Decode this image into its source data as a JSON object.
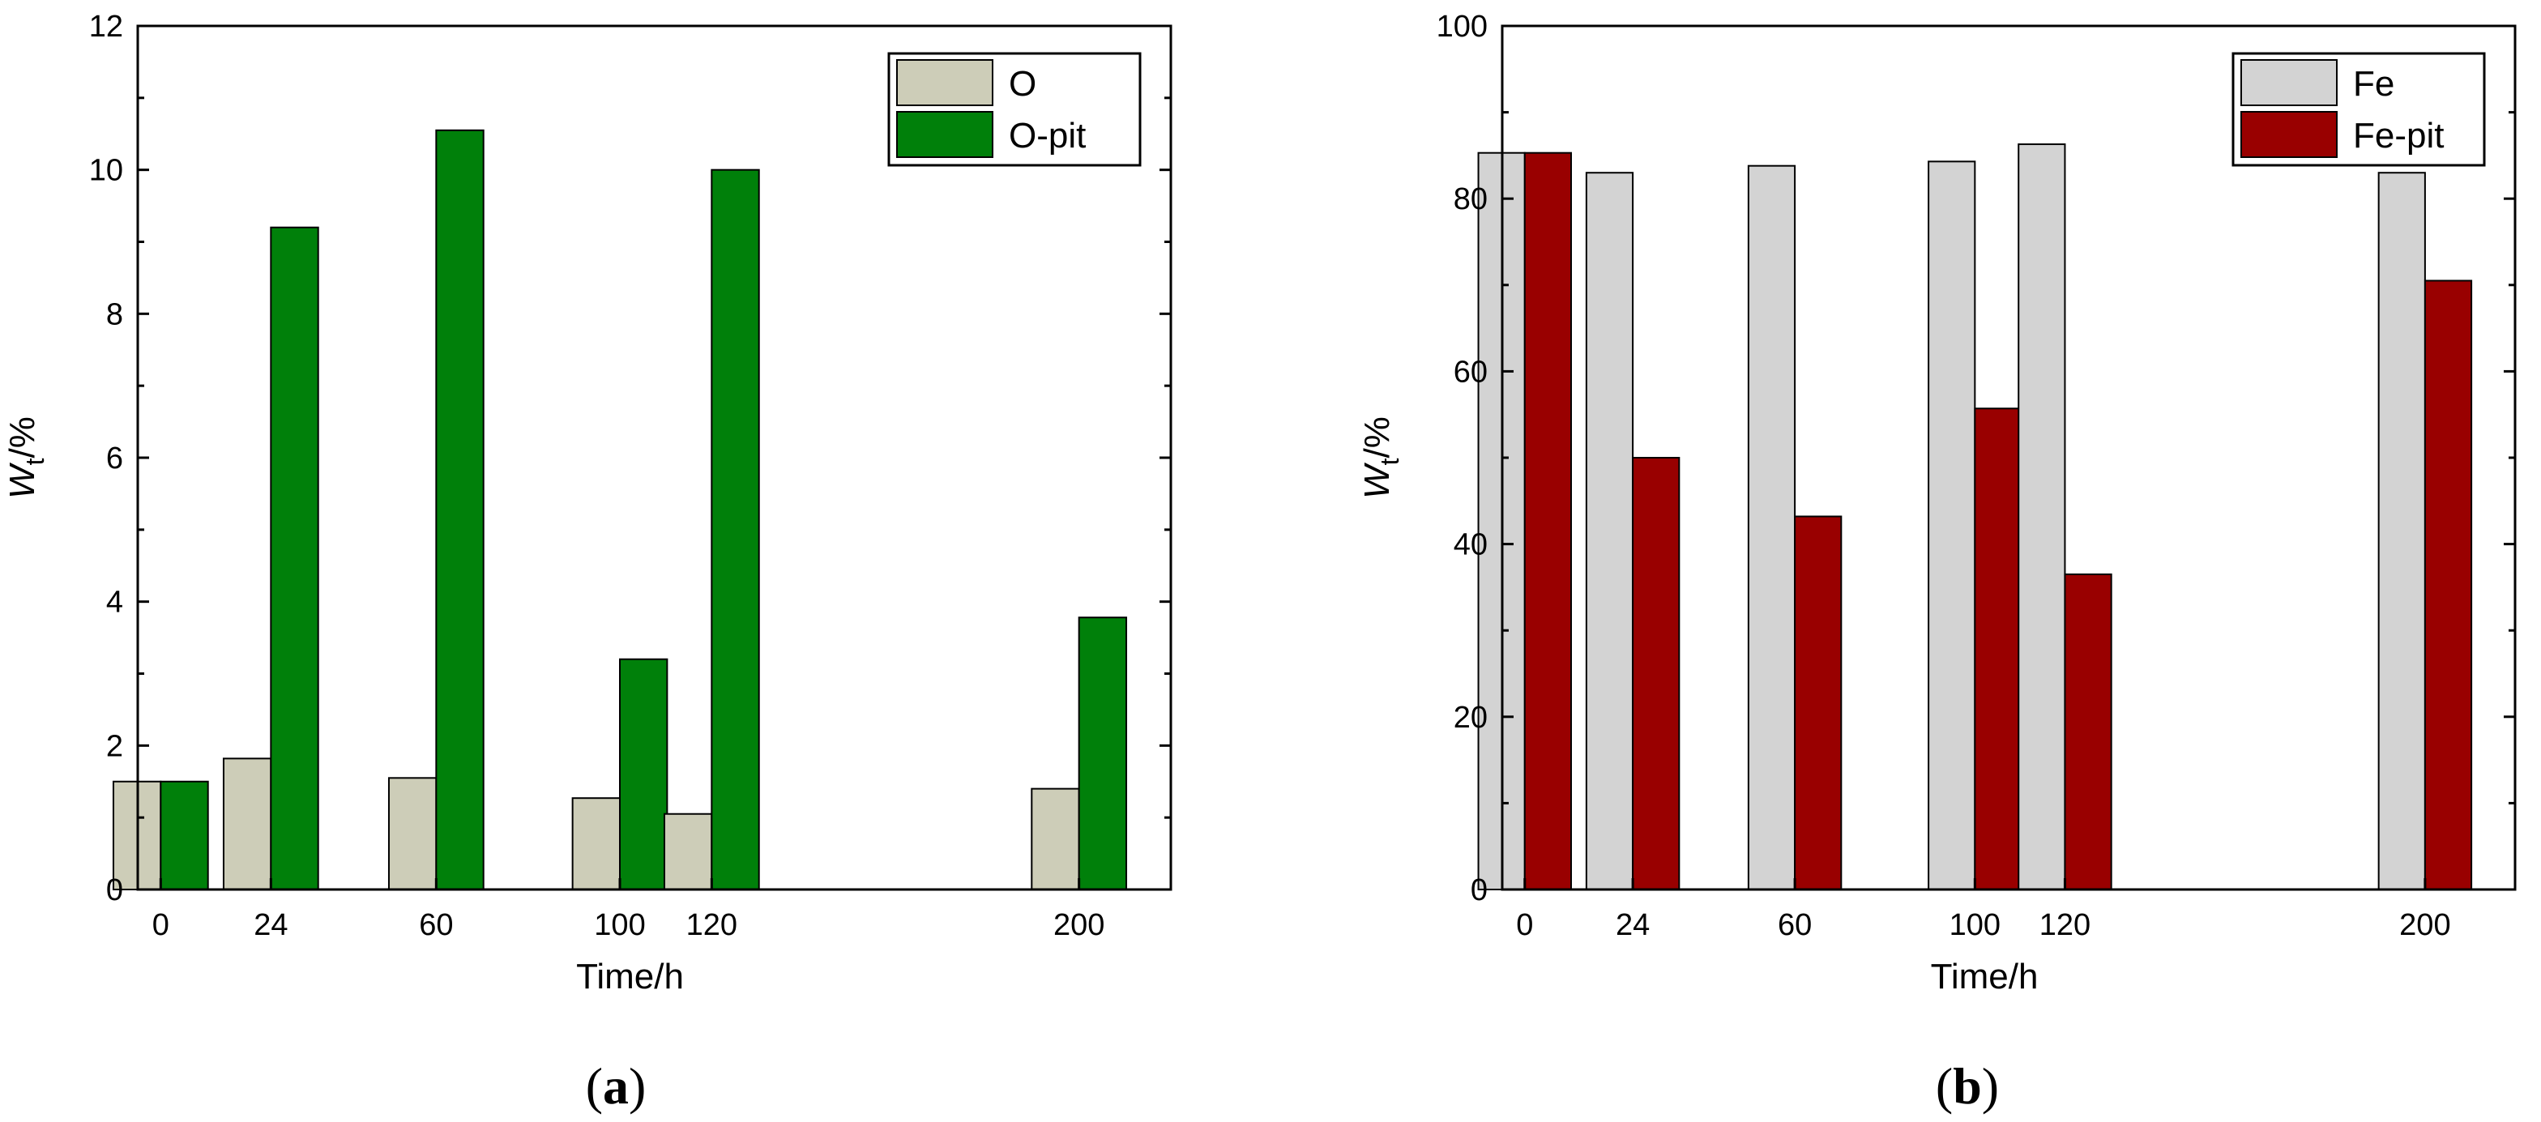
{
  "chart_data": [
    {
      "type": "bar",
      "panel_label": "a",
      "categories": [
        0,
        24,
        60,
        100,
        120,
        200
      ],
      "series": [
        {
          "name": "O",
          "color": "#cdcdb8",
          "values": [
            1.5,
            1.82,
            1.55,
            1.27,
            1.05,
            1.4
          ]
        },
        {
          "name": "O-pit",
          "color": "#00800a",
          "values": [
            1.5,
            9.2,
            10.55,
            3.2,
            10.0,
            3.78
          ]
        }
      ],
      "xlabel": "Time/h",
      "ylabel": {
        "base": "W",
        "sub": "t",
        "suffix": "/%"
      },
      "xlim": [
        -5,
        220
      ],
      "ylim": [
        0,
        12
      ],
      "yticks": [
        0,
        2,
        4,
        6,
        8,
        10,
        12
      ],
      "xticks": [
        0,
        24,
        60,
        100,
        120,
        200
      ],
      "legend": "top-right",
      "grid": false
    },
    {
      "type": "bar",
      "panel_label": "b",
      "categories": [
        0,
        24,
        60,
        100,
        120,
        200
      ],
      "series": [
        {
          "name": "Fe",
          "color": "#d3d3d3",
          "values": [
            85.3,
            83.0,
            83.8,
            84.3,
            86.3,
            83.0
          ]
        },
        {
          "name": "Fe-pit",
          "color": "#990000",
          "values": [
            85.3,
            50.0,
            43.2,
            55.7,
            36.5,
            70.5
          ]
        }
      ],
      "xlabel": "Time/h",
      "ylabel": {
        "base": "W",
        "sub": "t",
        "suffix": "/%"
      },
      "xlim": [
        -5,
        220
      ],
      "ylim": [
        0,
        100
      ],
      "yticks": [
        0,
        20,
        40,
        60,
        80,
        100
      ],
      "xticks": [
        0,
        24,
        60,
        100,
        120,
        200
      ],
      "legend": "top-right",
      "grid": false
    }
  ]
}
